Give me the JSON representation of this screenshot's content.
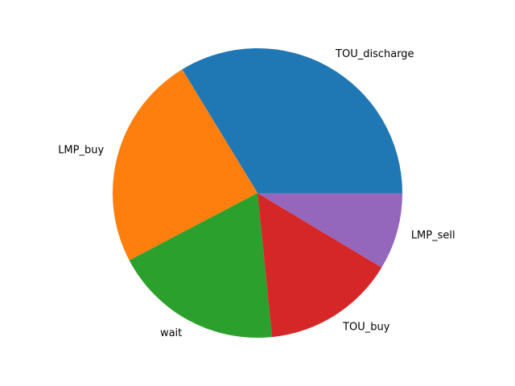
{
  "chart_data": {
    "type": "pie",
    "title": "",
    "labels": [
      "TOU_discharge",
      "LMP_buy",
      "wait",
      "TOU_buy",
      "LMP_sell"
    ],
    "values": [
      33.7,
      24.0,
      18.9,
      14.8,
      8.6
    ],
    "colors": [
      "#1f77b4",
      "#ff7f0e",
      "#2ca02c",
      "#d62728",
      "#9467bd"
    ],
    "start_angle_deg": 0,
    "direction": "counterclockwise",
    "legend": "none"
  }
}
